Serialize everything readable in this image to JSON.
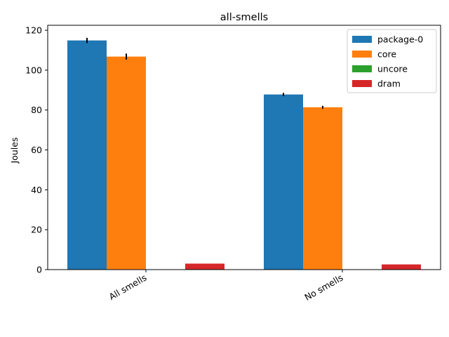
{
  "chart_data": {
    "type": "bar",
    "title": "all-smells",
    "xlabel": "",
    "ylabel": "Joules",
    "categories": [
      "All smells",
      "No smells"
    ],
    "ylim": [
      0,
      122.5
    ],
    "yticks": [
      0,
      20,
      40,
      60,
      80,
      100,
      120
    ],
    "grid": false,
    "legend_position": "top-right",
    "series": [
      {
        "name": "package-0",
        "values": [
          114.9,
          87.8
        ],
        "errors": [
          1.3,
          0.8
        ],
        "color": "#1f77b4"
      },
      {
        "name": "core",
        "values": [
          106.8,
          81.4
        ],
        "errors": [
          1.5,
          0.7
        ],
        "color": "#ff7f0e"
      },
      {
        "name": "uncore",
        "values": [
          0,
          0
        ],
        "errors": [
          0,
          0
        ],
        "color": "#2ca02c"
      },
      {
        "name": "dram",
        "values": [
          3.0,
          2.6
        ],
        "errors": [
          0,
          0
        ],
        "color": "#d62728"
      }
    ]
  }
}
